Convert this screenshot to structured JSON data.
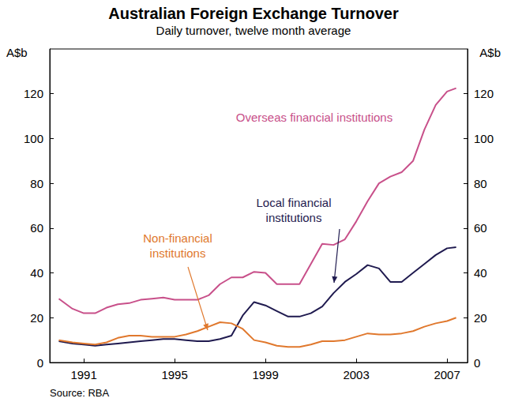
{
  "chart_data": {
    "type": "line",
    "title": "Australian Foreign Exchange Turnover",
    "subtitle": "Daily turnover, twelve month average",
    "y_label": "A$b",
    "y2_label": "A$b",
    "source": "Source: RBA",
    "x": [
      1989.9,
      1990.5,
      1991.0,
      1991.5,
      1992.0,
      1992.5,
      1993.0,
      1993.5,
      1994.0,
      1994.5,
      1995.0,
      1995.5,
      1996.0,
      1996.5,
      1997.0,
      1997.5,
      1998.0,
      1998.5,
      1999.0,
      1999.5,
      2000.0,
      2000.5,
      2001.0,
      2001.5,
      2002.0,
      2002.5,
      2003.0,
      2003.5,
      2004.0,
      2004.5,
      2005.0,
      2005.5,
      2006.0,
      2006.5,
      2007.0,
      2007.4
    ],
    "series": [
      {
        "name": "Overseas financial institutions",
        "color": "#c8508a",
        "values": [
          28.5,
          24,
          22,
          22,
          24.5,
          26,
          26.5,
          28,
          28.5,
          29,
          28,
          28,
          28,
          30,
          35,
          38,
          38,
          40.5,
          40,
          35,
          35,
          35,
          44,
          53,
          52.5,
          55,
          63,
          72,
          80,
          83,
          85,
          90,
          104,
          115,
          121,
          122.5
        ]
      },
      {
        "name": "Local financial\ninstitutions",
        "color": "#1f1a4f",
        "values": [
          9.5,
          8.5,
          8,
          7.5,
          8,
          8.5,
          9,
          9.5,
          10,
          10.5,
          10.5,
          10,
          9.5,
          9.5,
          10.5,
          12,
          21,
          27,
          25.5,
          23,
          20.5,
          20.5,
          22,
          25,
          31,
          36,
          39.5,
          43.5,
          42,
          36,
          36,
          40,
          44,
          48,
          51,
          51.5
        ]
      },
      {
        "name": "Non-financial\ninstitutions",
        "color": "#e0782d",
        "values": [
          10,
          9,
          8.5,
          8,
          9,
          11,
          12,
          12,
          11.5,
          11.5,
          11.5,
          12.5,
          14,
          16,
          18,
          17.5,
          15,
          10,
          9,
          7.5,
          7,
          7,
          8,
          9.5,
          9.5,
          10,
          11.5,
          13,
          12.5,
          12.5,
          13,
          14,
          16,
          17.5,
          18.5,
          20
        ]
      }
    ],
    "xlim": [
      1989.5,
      2007.9
    ],
    "xticks": [
      1991,
      1995,
      1999,
      2003,
      2007
    ],
    "ylim": [
      0,
      140
    ],
    "yticks": [
      0,
      20,
      40,
      60,
      80,
      100,
      120
    ],
    "y2lim": [
      0,
      140
    ],
    "y2ticks": [
      0,
      20,
      40,
      60,
      80,
      100,
      120
    ],
    "grid": false
  }
}
